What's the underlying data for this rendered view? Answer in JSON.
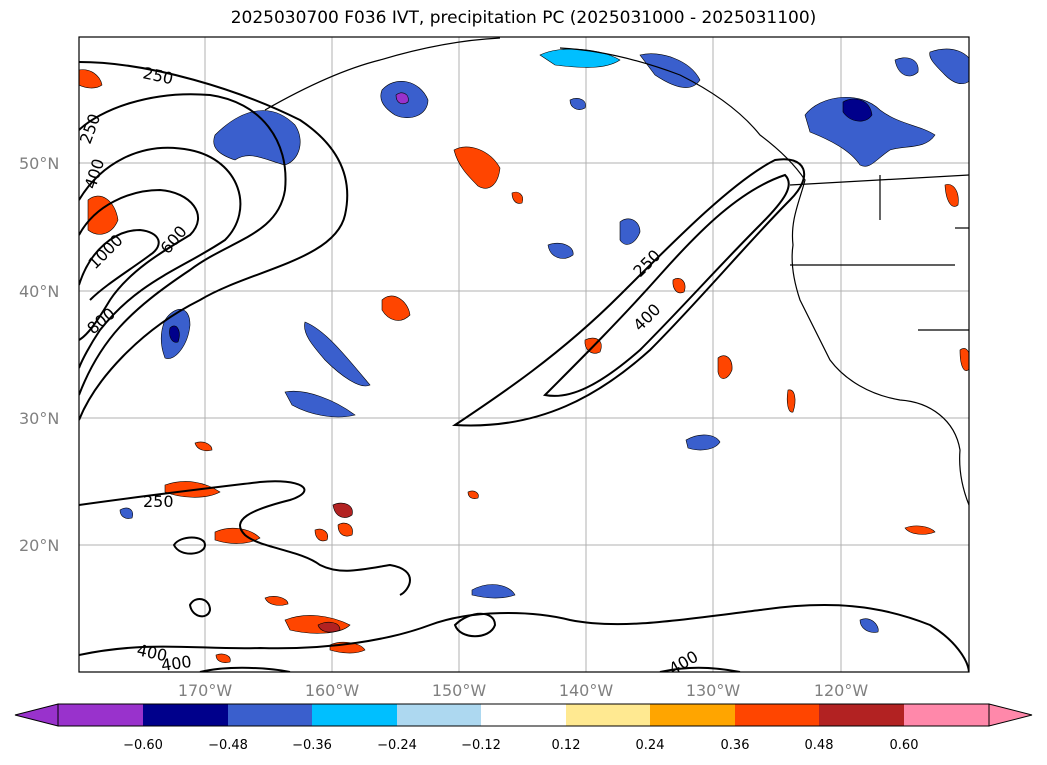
{
  "title": "2025030700 F036 IVT, precipitation PC (2025031000 - 2025031100)",
  "map": {
    "lat_labels": [
      "50°N",
      "40°N",
      "30°N",
      "20°N"
    ],
    "lon_labels": [
      "170°W",
      "160°W",
      "150°W",
      "140°W",
      "130°W",
      "120°W"
    ],
    "gridlines": true
  },
  "ivt_contours": {
    "levels": [
      250,
      400,
      600,
      800,
      1000
    ],
    "labels": [
      "250",
      "250",
      "400",
      "1000",
      "600",
      "800",
      "250",
      "400",
      "250",
      "400",
      "400",
      "400"
    ]
  },
  "colorbar": {
    "tick_labels": [
      "−0.60",
      "−0.48",
      "−0.36",
      "−0.24",
      "−0.12",
      "0.12",
      "0.24",
      "0.36",
      "0.48",
      "0.60"
    ],
    "colors": [
      "#9932cc",
      "#00008b",
      "#3a5fcd",
      "#00bfff",
      "#add8f0",
      "#ffffff",
      "#ffe991",
      "#ffa500",
      "#ff4500",
      "#b22222",
      "#ff88aa"
    ],
    "extend": "both"
  }
}
